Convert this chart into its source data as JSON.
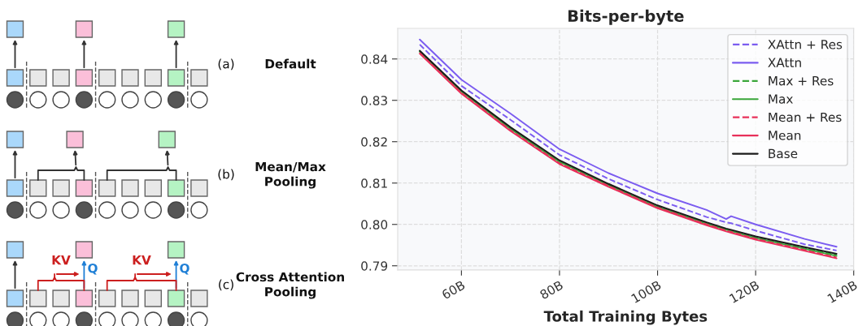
{
  "chart_data": [
    {
      "type": "other",
      "annotations": [
        "(a)",
        "Default",
        "(b)",
        "Mean/Max\nPooling",
        "(c)",
        "Cross Attention\nPooling",
        "KV",
        "Q",
        "KV",
        "Q"
      ]
    },
    {
      "type": "line",
      "title": "Bits-per-byte",
      "xlabel": "Total Training Bytes",
      "xlim": [
        47,
        140
      ],
      "ylim": [
        0.789,
        0.8474
      ],
      "xticks": [
        {
          "value": 60,
          "label": "60B"
        },
        {
          "value": 80,
          "label": "80B"
        },
        {
          "value": 100,
          "label": "100B"
        },
        {
          "value": 120,
          "label": "120B"
        },
        {
          "value": 140,
          "label": "140B"
        }
      ],
      "yticks": [
        0.79,
        {
          "value": 0.8,
          "label": "0.80"
        },
        0.81,
        0.82,
        0.83,
        0.84
      ],
      "grid": true,
      "legend": "top right",
      "marker": "none",
      "x": [
        51.5,
        60,
        70,
        80,
        90,
        100,
        110,
        114,
        115,
        120,
        130,
        136.5
      ],
      "series": [
        {
          "name": "XAttn + Res",
          "color": "#7b5cf0",
          "line_style": "dashed",
          "values": [
            0.8435,
            0.8335,
            0.8253,
            0.8168,
            0.811,
            0.806,
            0.8018,
            0.8005,
            0.8003,
            0.7985,
            0.7952,
            0.7937
          ]
        },
        {
          "name": "XAttn",
          "color": "#7b5cf0",
          "line_style": "solid",
          "values": [
            0.8447,
            0.835,
            0.8268,
            0.8182,
            0.8124,
            0.8075,
            0.8035,
            0.8013,
            0.802,
            0.8,
            0.7965,
            0.7946
          ]
        },
        {
          "name": "Max + Res",
          "color": "#3aa63a",
          "line_style": "dashed",
          "values": [
            0.8418,
            0.8322,
            0.8232,
            0.8152,
            0.8096,
            0.8043,
            0.8003,
            0.7988,
            0.7985,
            0.7968,
            0.7942,
            0.7926
          ]
        },
        {
          "name": "Max",
          "color": "#3aa63a",
          "line_style": "solid",
          "values": [
            0.8418,
            0.8321,
            0.8231,
            0.8151,
            0.8095,
            0.8042,
            0.8002,
            0.7987,
            0.7984,
            0.7967,
            0.7941,
            0.7924
          ]
        },
        {
          "name": "Mean + Res",
          "color": "#e8305a",
          "line_style": "dashed",
          "values": [
            0.8415,
            0.8318,
            0.8228,
            0.8148,
            0.8093,
            0.8041,
            0.8,
            0.7985,
            0.7982,
            0.7965,
            0.7938,
            0.792
          ]
        },
        {
          "name": "Mean",
          "color": "#e8305a",
          "line_style": "solid",
          "values": [
            0.8413,
            0.8316,
            0.8226,
            0.8146,
            0.8091,
            0.8039,
            0.7998,
            0.7983,
            0.798,
            0.7963,
            0.7936,
            0.7918
          ]
        },
        {
          "name": "Base",
          "color": "#1a1a1a",
          "line_style": "solid",
          "values": [
            0.842,
            0.8324,
            0.8235,
            0.8155,
            0.8098,
            0.8046,
            0.8005,
            0.799,
            0.7987,
            0.7971,
            0.7945,
            0.7929
          ]
        }
      ]
    }
  ]
}
